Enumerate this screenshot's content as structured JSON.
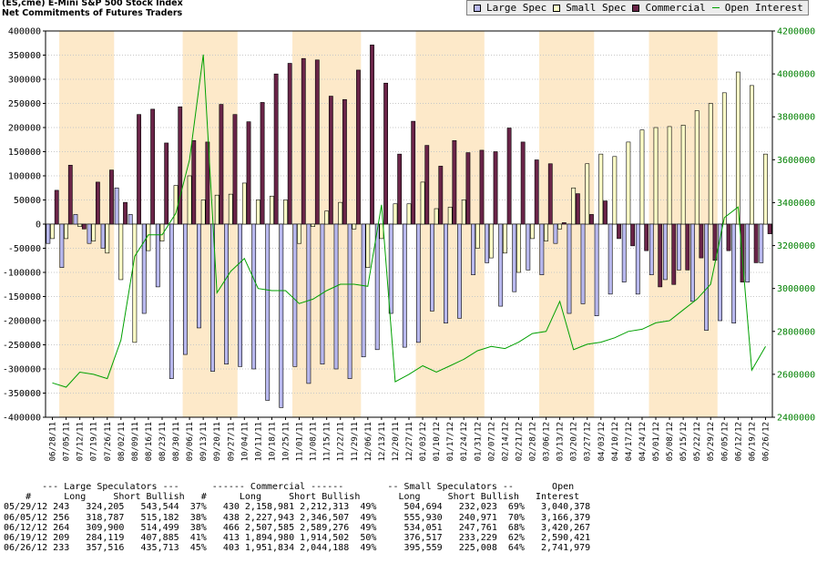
{
  "title": {
    "line1": "(ES,cme) E-Mini S&P 500 Stock Index",
    "line2": "Net Commitments of Futures Traders"
  },
  "colors": {
    "large_spec": "#b8b8ee",
    "small_spec": "#ffffc8",
    "commercial": "#6a2448",
    "open_interest": "#00a000",
    "band": "#fde9c9"
  },
  "chart_data": {
    "type": "bar",
    "legend_position": "top-right",
    "left_axis": {
      "min": -400000,
      "max": 400000,
      "step": 50000
    },
    "right_axis": {
      "min": 2400000,
      "max": 4200000,
      "step": 200000
    },
    "categories": [
      "06/28/11",
      "07/05/11",
      "07/12/11",
      "07/19/11",
      "07/26/11",
      "08/02/11",
      "08/09/11",
      "08/16/11",
      "08/23/11",
      "08/30/11",
      "09/06/11",
      "09/13/11",
      "09/20/11",
      "09/27/11",
      "10/04/11",
      "10/11/11",
      "10/18/11",
      "10/25/11",
      "11/01/11",
      "11/08/11",
      "11/15/11",
      "11/22/11",
      "11/29/11",
      "12/06/11",
      "12/13/11",
      "12/20/11",
      "12/27/11",
      "01/03/12",
      "01/10/12",
      "01/17/12",
      "01/24/12",
      "01/31/12",
      "02/07/12",
      "02/14/12",
      "02/21/12",
      "02/28/12",
      "03/06/12",
      "03/13/12",
      "03/20/12",
      "03/27/12",
      "04/03/12",
      "04/10/12",
      "04/17/12",
      "04/24/12",
      "05/01/12",
      "05/08/12",
      "05/15/12",
      "05/22/12",
      "05/29/12",
      "06/05/12",
      "06/12/12",
      "06/19/12",
      "06/26/12"
    ],
    "tick_labels": [
      "06/28/11",
      "07/05/11",
      "07/12/11",
      "07/19/11",
      "07/26/11",
      "08/02/11",
      "08/09/11",
      "08/16/11",
      "08/23/11",
      "08/30/11",
      "09/06/11",
      "09/13/11",
      "09/20/11",
      "09/27/11",
      "10/04/11",
      "10/11/11",
      "10/18/11",
      "10/25/11",
      "11/01/11",
      "11/08/11",
      "11/15/11",
      "11/22/11",
      "11/29/11",
      "12/06/11",
      "12/13/11",
      "12/20/11",
      "12/27/11",
      "01/03/12",
      "01/10/12",
      "01/17/12",
      "01/24/12",
      "01/31/12",
      "02/07/12",
      "02/14/12",
      "02/21/12",
      "02/28/12",
      "03/06/12",
      "03/13/12",
      "03/20/12",
      "03/27/12",
      "04/03/12",
      "04/10/12",
      "04/17/12",
      "04/24/12",
      "05/01/12",
      "05/08/12",
      "05/15/12",
      "05/22/12",
      "05/29/12",
      "06/05/12",
      "06/12/12",
      "06/19/12",
      "06/26/12"
    ],
    "left_ticks": [
      "400000",
      "350000",
      "300000",
      "250000",
      "200000",
      "150000",
      "100000",
      "50000",
      "0",
      "-50000",
      "-100000",
      "-150000",
      "-200000",
      "-250000",
      "-300000",
      "-350000",
      "-400000"
    ],
    "right_ticks": [
      "4200000",
      "4000000",
      "3800000",
      "3600000",
      "3400000",
      "3200000",
      "3000000",
      "2800000",
      "2600000",
      "2400000"
    ],
    "series": [
      {
        "name": "Large Spec",
        "axis": "left",
        "values": [
          -40000,
          -90000,
          20000,
          -40000,
          -50000,
          75000,
          20000,
          -185000,
          -130000,
          -320000,
          -270000,
          -215000,
          -305000,
          -290000,
          -295000,
          -300000,
          -365000,
          -380000,
          -295000,
          -330000,
          -290000,
          -300000,
          -320000,
          -275000,
          -260000,
          -185000,
          -255000,
          -245000,
          -180000,
          -205000,
          -195000,
          -105000,
          -80000,
          -170000,
          -140000,
          -95000,
          -105000,
          -40000,
          -185000,
          -165000,
          -190000,
          -145000,
          -120000,
          -145000,
          -105000,
          -115000,
          -95000,
          -160000,
          -220000,
          -200000,
          -205000,
          -120000,
          -80000
        ]
      },
      {
        "name": "Small Spec",
        "axis": "left",
        "values": [
          -30000,
          -30000,
          -5000,
          -35000,
          -60000,
          -115000,
          -245000,
          -55000,
          -35000,
          80000,
          100000,
          50000,
          60000,
          62000,
          85000,
          50000,
          58000,
          50000,
          -40000,
          -5000,
          27000,
          45000,
          -10000,
          -90000,
          -30000,
          42000,
          42000,
          87000,
          32000,
          35000,
          50000,
          -50000,
          -70000,
          -60000,
          -100000,
          -30000,
          -35000,
          -10000,
          75000,
          125000,
          145000,
          140000,
          170000,
          195000,
          200000,
          202000,
          205000,
          235000,
          250000,
          272000,
          315000,
          287000,
          145000
        ]
      },
      {
        "name": "Commercial",
        "axis": "left",
        "values": [
          70000,
          122000,
          -10000,
          87000,
          112000,
          45000,
          227000,
          238000,
          168000,
          243000,
          173000,
          170000,
          248000,
          227000,
          212000,
          252000,
          311000,
          333000,
          343000,
          340000,
          265000,
          258000,
          319000,
          371000,
          292000,
          145000,
          213000,
          163000,
          120000,
          173000,
          148000,
          153000,
          150000,
          199000,
          170000,
          133000,
          125000,
          3000,
          63000,
          20000,
          48000,
          -30000,
          -45000,
          -55000,
          -130000,
          -125000,
          -95000,
          -70000,
          -75000,
          -55000,
          -120000,
          -80000,
          -20000
        ]
      },
      {
        "name": "Open Interest",
        "axis": "right",
        "values": [
          2560000,
          2540000,
          2610000,
          2600000,
          2580000,
          2760000,
          3150000,
          3250000,
          3250000,
          3350000,
          3600000,
          4090000,
          2980000,
          3080000,
          3140000,
          3000000,
          2990000,
          2990000,
          2930000,
          2950000,
          2990000,
          3020000,
          3020000,
          3010000,
          3390000,
          2565000,
          2600000,
          2640000,
          2610000,
          2640000,
          2670000,
          2710000,
          2730000,
          2720000,
          2750000,
          2790000,
          2800000,
          2940000,
          2715000,
          2740000,
          2750000,
          2770000,
          2800000,
          2810000,
          2840000,
          2850000,
          2900000,
          2950000,
          3020000,
          3330000,
          3380000,
          2620000,
          2730000
        ]
      }
    ]
  },
  "table": {
    "header1": "       --- Large Speculators ---      ------ Commercial ------        -- Small Speculators --       Open",
    "header2": "    #      Long     Short Bullish   #      Long     Short Bullish       Long     Short Bullish   Interest",
    "rows": [
      "05/29/12 243   324,205   543,544  37%   430 2,158,981 2,212,313  49%     504,694   232,023  69%   3,040,378",
      "06/05/12 256   318,787   515,182  38%   438 2,227,943 2,346,507  49%     555,930   240,971  70%   3,166,379",
      "06/12/12 264   309,900   514,499  38%   466 2,507,585 2,589,276  49%     534,051   247,761  68%   3,420,267",
      "06/19/12 209   284,119   407,885  41%   413 1,894,980 1,914,502  50%     376,517   233,229  62%   2,590,421",
      "06/26/12 233   357,516   435,713  45%   403 1,951,834 2,044,188  49%     395,559   225,008  64%   2,741,979"
    ]
  }
}
